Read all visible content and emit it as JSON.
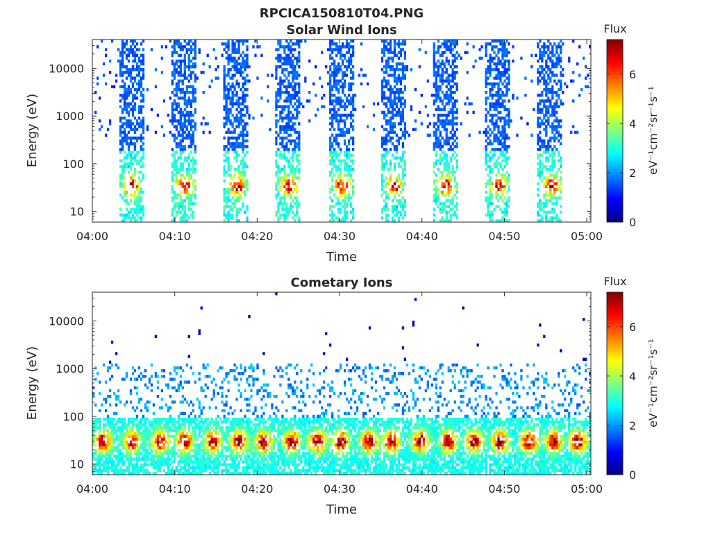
{
  "figure": {
    "title": "RPCICA150810T04.PNG"
  },
  "chart_data": [
    {
      "type": "heatmap",
      "name": "solar",
      "title": "Solar Wind Ions",
      "xlabel": "Time",
      "ylabel": "Energy (eV)",
      "x_tick_labels": [
        "04:00",
        "04:10",
        "04:20",
        "04:30",
        "04:40",
        "04:50",
        "05:00"
      ],
      "x_range_minutes": [
        0,
        60.5
      ],
      "y_scale": "log",
      "y_range": [
        6,
        40000
      ],
      "y_tick_values": [
        10,
        100,
        1000,
        10000
      ],
      "y_tick_labels": [
        "10",
        "100",
        "1000",
        "10000"
      ],
      "colorbar": {
        "title": "Flux",
        "label": "eV⁻¹cm⁻²sr⁻¹s⁻¹",
        "range": [
          0,
          7.4
        ],
        "tick_values": [
          0,
          2,
          4,
          6
        ],
        "tick_labels": [
          "0",
          "2",
          "4",
          "6"
        ],
        "colormap": "jet"
      },
      "pattern": {
        "sweep_windows_minutes": [
          [
            3.3,
            6.3
          ],
          [
            9.7,
            12.7
          ],
          [
            16.0,
            19.0
          ],
          [
            22.3,
            25.3
          ],
          [
            28.7,
            31.7
          ],
          [
            35.0,
            38.0
          ],
          [
            41.3,
            44.3
          ],
          [
            47.7,
            50.7
          ],
          [
            54.0,
            57.0
          ]
        ],
        "peak_minutes": [
          4.8,
          11.2,
          17.6,
          23.9,
          30.3,
          36.6,
          42.9,
          49.3,
          55.7
        ],
        "peak_energy_eV": 35,
        "peak_flux": 6.5,
        "background_flux": 1.3,
        "sparse_outside_windows": true
      }
    },
    {
      "type": "heatmap",
      "name": "cometary",
      "title": "Cometary Ions",
      "xlabel": "Time",
      "ylabel": "Energy (eV)",
      "x_tick_labels": [
        "04:00",
        "04:10",
        "04:20",
        "04:30",
        "04:40",
        "04:50",
        "05:00"
      ],
      "x_range_minutes": [
        0,
        60.5
      ],
      "y_scale": "log",
      "y_range": [
        6,
        40000
      ],
      "y_tick_values": [
        10,
        100,
        1000,
        10000
      ],
      "y_tick_labels": [
        "10",
        "100",
        "1000",
        "10000"
      ],
      "colorbar": {
        "title": "Flux",
        "label": "eV⁻¹cm⁻²sr⁻¹s⁻¹",
        "range": [
          0,
          7.4
        ],
        "tick_values": [
          0,
          2,
          4,
          6
        ],
        "tick_labels": [
          "0",
          "2",
          "4",
          "6"
        ],
        "colormap": "jet"
      },
      "pattern": {
        "band_energy_eV": [
          20,
          80
        ],
        "peak_minutes": [
          1.3,
          4.8,
          8.2,
          11.2,
          14.6,
          17.8,
          20.8,
          24.2,
          27.3,
          30.2,
          33.6,
          36.3,
          39.8,
          43.2,
          46.3,
          49.5,
          53.0,
          56.0,
          59.0
        ],
        "peak_energy_eV": 30,
        "peak_flux": 7.3,
        "background_flux": 1.5,
        "high_energy_sparse_points": true
      }
    }
  ]
}
